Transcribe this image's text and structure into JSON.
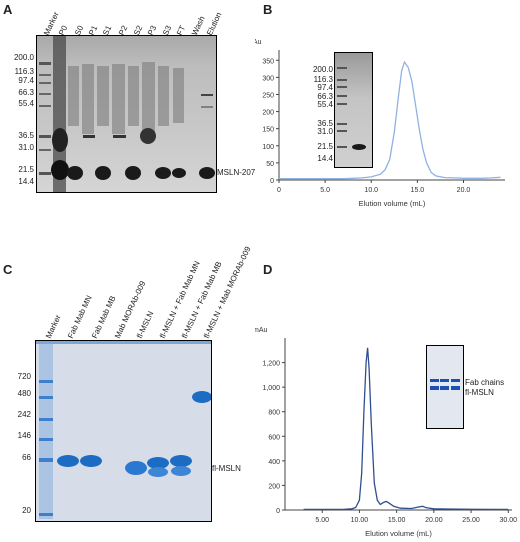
{
  "panels": {
    "a": {
      "letter": "A",
      "lanes": [
        "Marker",
        "P0",
        "S0",
        "P1",
        "S1",
        "P2",
        "S2",
        "P3",
        "S3",
        "FT",
        "Wash",
        "Elution"
      ],
      "mw": [
        "200.0",
        "116.3",
        "97.4",
        "66.3",
        "55.4",
        "36.5",
        "31.0",
        "21.5",
        "14.4"
      ],
      "band_label": "MSLN-207"
    },
    "b": {
      "letter": "B",
      "chart_data": {
        "type": "line",
        "ylabel": "mAu",
        "xlabel": "Elution volume (mL)",
        "x_ticks": [
          "0",
          "5.0",
          "10.0",
          "15.0",
          "20.0"
        ],
        "y_ticks": [
          "0",
          "50",
          "100",
          "150",
          "200",
          "250",
          "300",
          "350"
        ],
        "xlim": [
          0,
          24.5
        ],
        "ylim": [
          0,
          380
        ],
        "series": [
          {
            "x": [
              0,
              5,
              7,
              8,
              9,
              10,
              11,
              11.5,
              12,
              12.5,
              13,
              13.3,
              13.6,
              14,
              14.4,
              14.8,
              15.2,
              15.6,
              16,
              16.5,
              17,
              18,
              19,
              20,
              21,
              22,
              23,
              24
            ],
            "y": [
              4,
              4,
              4,
              5,
              6,
              9,
              17,
              30,
              60,
              140,
              255,
              320,
              345,
              330,
              290,
              220,
              150,
              90,
              50,
              22,
              12,
              7,
              6,
              5,
              5,
              5,
              6,
              8
            ]
          }
        ],
        "color": "#8fb2df"
      },
      "inset_mw": [
        "200.0",
        "116.3",
        "97.4",
        "66.3",
        "55.4",
        "36.5",
        "31.0",
        "21.5",
        "14.4"
      ]
    },
    "c": {
      "letter": "C",
      "lanes": [
        "Marker",
        "Fab Mab MN",
        "Fab Mab MB",
        "Mab MORAb-009",
        "fl-MSLN",
        "fl-MSLN + Fab Mab MN",
        "fl-MSLN + Fab Mab MB",
        "fl-MSLN + Mab MORAb-009"
      ],
      "mw": [
        "720",
        "480",
        "242",
        "146",
        "66",
        "20"
      ],
      "band_label": "fl-MSLN"
    },
    "d": {
      "letter": "D",
      "chart_data": {
        "type": "line",
        "ylabel": "mAu",
        "xlabel": "Elution volume (mL)",
        "x_ticks": [
          "5.00",
          "10.00",
          "15.00",
          "20.00",
          "25.00",
          "30.00"
        ],
        "y_ticks": [
          "0",
          "200",
          "400",
          "600",
          "800",
          "1,000",
          "1,200"
        ],
        "xlim": [
          0,
          30.5
        ],
        "ylim": [
          0,
          1400
        ],
        "series": [
          {
            "x": [
              2.5,
              5,
              8,
              9,
              9.5,
              10,
              10.3,
              10.6,
              10.9,
              11.1,
              11.3,
              11.6,
              12,
              12.4,
              12.8,
              13.2,
              13.6,
              14,
              14.6,
              15.5,
              17,
              18,
              18.5,
              19,
              20,
              22,
              25,
              28,
              30
            ],
            "y": [
              5,
              5,
              6,
              10,
              20,
              80,
              300,
              800,
              1200,
              1320,
              1150,
              700,
              220,
              80,
              45,
              60,
              70,
              55,
              30,
              15,
              12,
              25,
              30,
              18,
              10,
              8,
              6,
              5,
              5
            ]
          }
        ],
        "color": "#2f4f8f"
      },
      "inset_labels": [
        "Fab chains",
        "fl-MSLN"
      ]
    }
  }
}
